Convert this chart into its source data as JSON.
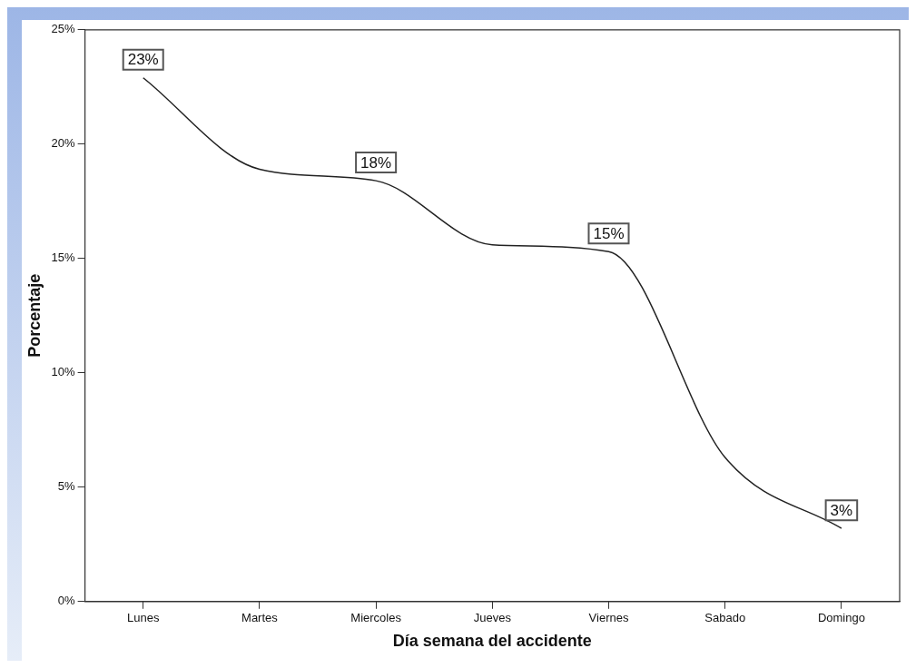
{
  "chart_data": {
    "type": "line",
    "xlabel": "Día semana del accidente",
    "ylabel": "Porcentaje",
    "categories": [
      "Lunes",
      "Martes",
      "Miercoles",
      "Jueves",
      "Viernes",
      "Sabado",
      "Domingo"
    ],
    "series": [
      {
        "color": "#222222",
        "values": [
          22.9,
          18.9,
          18.4,
          15.6,
          15.3,
          6.3,
          3.2
        ],
        "value_labels": [
          "23%",
          null,
          "18%",
          null,
          "15%",
          null,
          "3%"
        ]
      }
    ],
    "ylim": [
      0,
      25
    ],
    "yticks": [
      {
        "value": 0,
        "label": "0%"
      },
      {
        "value": 5,
        "label": "5%"
      },
      {
        "value": 10,
        "label": "10%"
      },
      {
        "value": 15,
        "label": "15%"
      },
      {
        "value": 20,
        "label": "20%"
      },
      {
        "value": 25,
        "label": "25%"
      }
    ],
    "grid": false,
    "legend": false,
    "marker": "none",
    "line_style": "solid"
  }
}
